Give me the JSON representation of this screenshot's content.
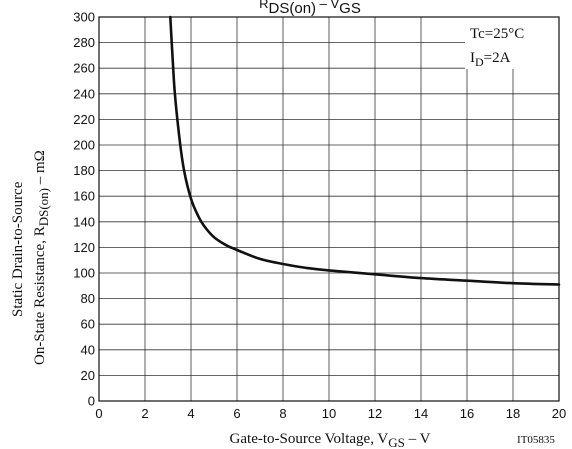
{
  "chart_data": {
    "type": "line",
    "title": "RDS(on) – VGS",
    "title_parts": {
      "r": "R",
      "r_sub": "DS(on)",
      "dash": " – ",
      "v": "V",
      "v_sub": "GS"
    },
    "xlabel": "Gate-to-Source Voltage, VGS  –  V",
    "xlabel_parts": {
      "pre": "Gate-to-Source Voltage, V",
      "sub": "GS",
      "post": " – V"
    },
    "ylabel": "Static Drain-to-Source On-State Resistance, RDS(on)  –  mΩ",
    "ylabel_parts": {
      "line1": "Static Drain-to-Source",
      "line2_pre": "On-State Resistance, R",
      "line2_sub": "DS(on)",
      "line2_post": " – mΩ"
    },
    "xlim": [
      0,
      20
    ],
    "ylim": [
      0,
      300
    ],
    "x_ticks": [
      "0",
      "2",
      "4",
      "6",
      "8",
      "10",
      "12",
      "14",
      "16",
      "18",
      "20"
    ],
    "y_ticks": [
      "0",
      "20",
      "40",
      "60",
      "80",
      "100",
      "120",
      "140",
      "160",
      "180",
      "200",
      "220",
      "240",
      "260",
      "280",
      "300"
    ],
    "grid": true,
    "legend": {
      "placement": "top-right",
      "tc": "Tc=25°C",
      "id_pre": "I",
      "id_sub": "D",
      "id_post": "=2A"
    },
    "code": "IT05835",
    "series": [
      {
        "x": [
          3.1,
          3.2,
          3.3,
          3.5,
          3.7,
          4.0,
          4.3,
          4.6,
          5.0,
          5.5,
          6.0,
          7.0,
          8.0,
          9.0,
          10.0,
          12.0,
          14.0,
          16.0,
          18.0,
          20.0
        ],
        "values": [
          300,
          268,
          240,
          205,
          180,
          158,
          145,
          136,
          128,
          122,
          118,
          111,
          107,
          104,
          102,
          99,
          96,
          94,
          92,
          91
        ]
      }
    ]
  },
  "colors": {
    "line": "#111111",
    "grid": "#333333",
    "frame": "#111111"
  }
}
